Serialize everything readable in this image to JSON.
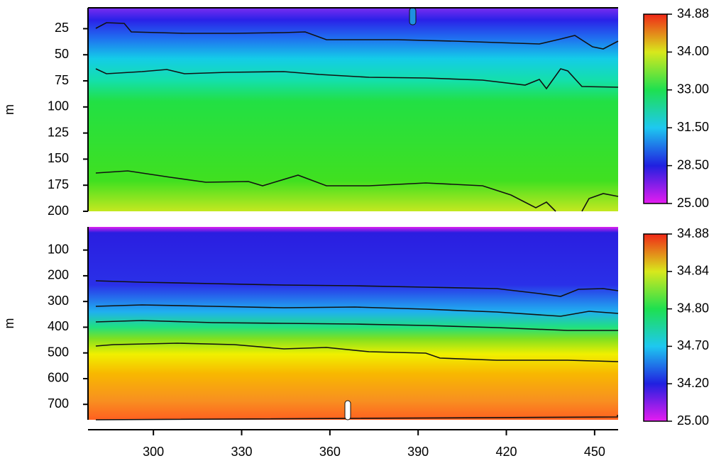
{
  "chart_data": [
    {
      "type": "heatmap",
      "ylabel": "m",
      "ylim": [
        5,
        200
      ],
      "yticks": [
        25,
        50,
        75,
        100,
        125,
        150,
        175,
        200
      ],
      "colorbar_ticks": [
        {
          "value": 25,
          "label": "25.00"
        },
        {
          "value": 28.5,
          "label": "28.50"
        },
        {
          "value": 31.5,
          "label": "31.50"
        },
        {
          "value": 33,
          "label": "33.00"
        },
        {
          "value": 34,
          "label": "34.00"
        },
        34.88
      ],
      "colorbar_colors": [
        "#e61cf0",
        "#2020e0",
        "#1ec8f0",
        "#1ee050",
        "#d8e81c",
        "#f02818"
      ]
    },
    {
      "type": "heatmap",
      "ylabel": "m",
      "ylim": [
        10,
        760
      ],
      "yticks": [
        100,
        200,
        300,
        400,
        500,
        600,
        700
      ],
      "xlim": [
        278,
        458
      ],
      "xticks": [
        300,
        330,
        360,
        390,
        420,
        450
      ],
      "colorbar_ticks": [
        {
          "value": 25,
          "label": "25.00"
        },
        {
          "value": 34.2,
          "label": "34.20"
        },
        {
          "value": 34.7,
          "label": "34.70"
        },
        {
          "value": 34.8,
          "label": "34.80"
        },
        34.84,
        34.88
      ],
      "colorbar_colors": [
        "#e61cf0",
        "#2020e0",
        "#1ec8f0",
        "#1ee050",
        "#d8e81c",
        "#f02818"
      ]
    }
  ]
}
